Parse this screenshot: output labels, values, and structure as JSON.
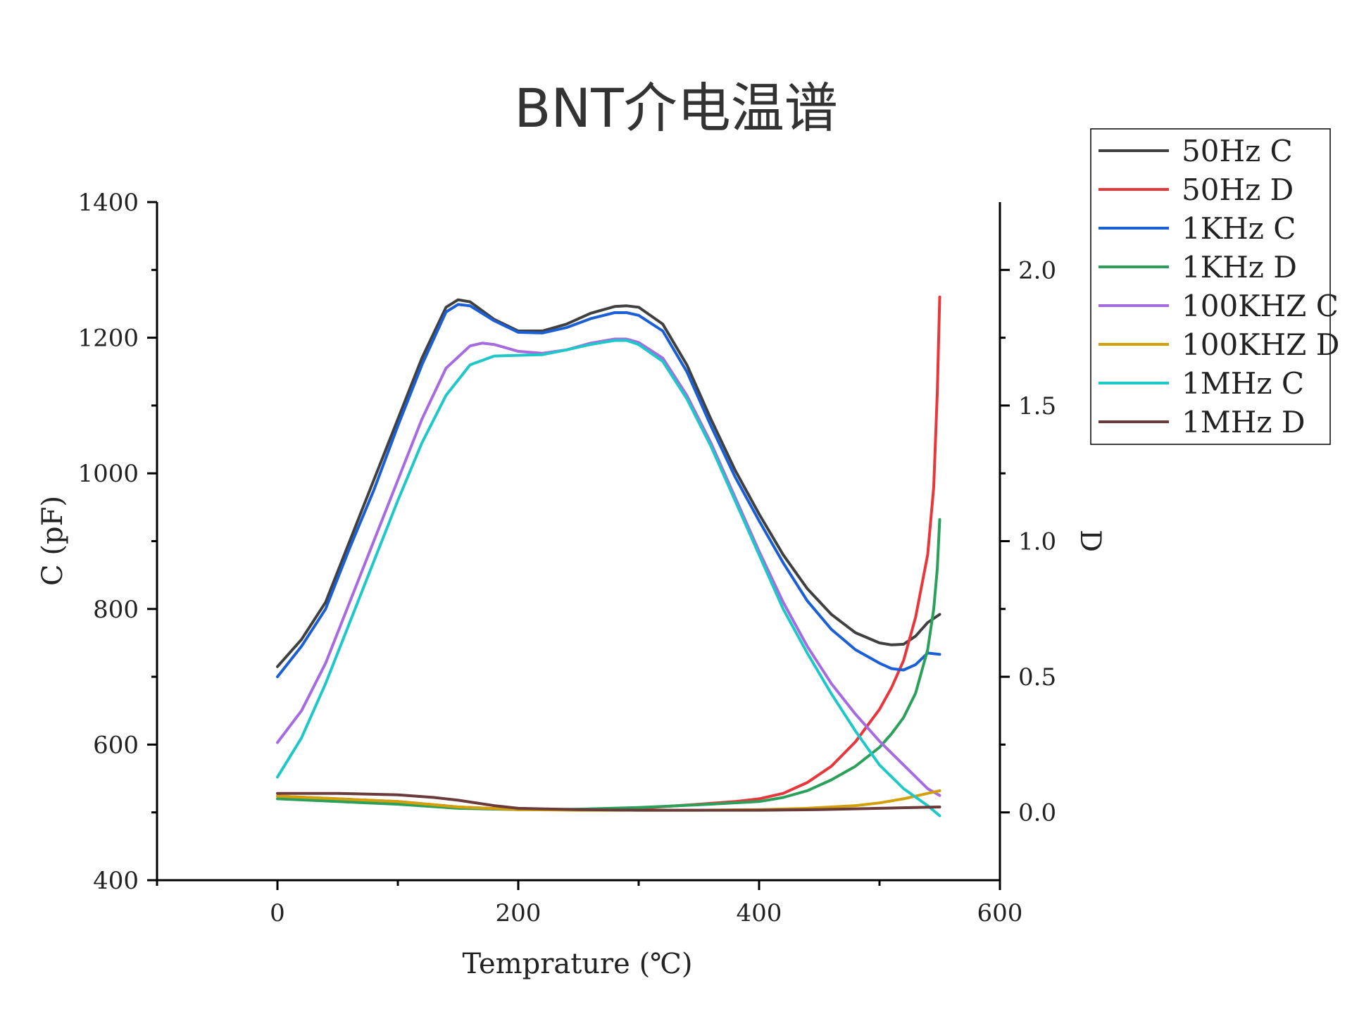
{
  "chart_data": {
    "type": "line",
    "title": "BNT介电温谱",
    "xlabel": "Temprature (℃)",
    "ylabel": "C (pF)",
    "y2label": "D",
    "xlim": [
      -100,
      600
    ],
    "ylim": [
      400,
      1400
    ],
    "y2lim": [
      -0.25,
      2.25
    ],
    "xticks": [
      0,
      200,
      400,
      600
    ],
    "yticks": [
      400,
      600,
      800,
      1000,
      1200,
      1400
    ],
    "y2ticks": [
      0.0,
      0.5,
      1.0,
      1.5,
      2.0
    ],
    "y2tick_labels": [
      "0.0",
      "0.5",
      "1.0",
      "1.5",
      "2.0"
    ],
    "legend_position": "outside-top-right",
    "series": [
      {
        "name": "50Hz C",
        "axis": "left",
        "color": "#404040",
        "x": [
          0,
          20,
          40,
          60,
          80,
          100,
          120,
          140,
          150,
          160,
          180,
          200,
          220,
          240,
          260,
          280,
          290,
          300,
          320,
          340,
          360,
          380,
          400,
          420,
          440,
          460,
          480,
          500,
          510,
          520,
          530,
          540,
          550
        ],
        "y": [
          715,
          755,
          810,
          900,
          990,
          1080,
          1170,
          1245,
          1256,
          1253,
          1227,
          1210,
          1210,
          1220,
          1236,
          1246,
          1247,
          1245,
          1220,
          1160,
          1080,
          1005,
          940,
          880,
          830,
          792,
          765,
          750,
          747,
          748,
          760,
          780,
          792
        ]
      },
      {
        "name": "50Hz D",
        "axis": "right",
        "color": "#e8373b",
        "x": [
          0,
          50,
          100,
          150,
          200,
          250,
          300,
          350,
          380,
          400,
          420,
          440,
          460,
          480,
          500,
          510,
          520,
          530,
          540,
          545,
          548,
          550
        ],
        "y": [
          0.06,
          0.05,
          0.04,
          0.02,
          0.01,
          0.01,
          0.015,
          0.03,
          0.04,
          0.05,
          0.07,
          0.11,
          0.17,
          0.26,
          0.38,
          0.46,
          0.56,
          0.72,
          0.95,
          1.2,
          1.55,
          1.9
        ]
      },
      {
        "name": "1KHz C",
        "axis": "left",
        "color": "#1a5fd6",
        "x": [
          0,
          20,
          40,
          60,
          80,
          100,
          120,
          140,
          150,
          160,
          180,
          200,
          220,
          240,
          260,
          280,
          290,
          300,
          320,
          340,
          360,
          380,
          400,
          420,
          440,
          460,
          480,
          500,
          510,
          520,
          530,
          540,
          550
        ],
        "y": [
          700,
          745,
          800,
          890,
          975,
          1070,
          1160,
          1238,
          1249,
          1247,
          1225,
          1208,
          1207,
          1215,
          1228,
          1237,
          1237,
          1233,
          1210,
          1150,
          1070,
          995,
          930,
          868,
          812,
          770,
          740,
          720,
          712,
          710,
          718,
          735,
          733
        ]
      },
      {
        "name": "1KHz D",
        "axis": "right",
        "color": "#2aa05a",
        "x": [
          0,
          50,
          100,
          150,
          200,
          250,
          300,
          350,
          400,
          420,
          440,
          460,
          480,
          500,
          510,
          520,
          530,
          540,
          545,
          548,
          550
        ],
        "y": [
          0.05,
          0.04,
          0.03,
          0.015,
          0.01,
          0.012,
          0.018,
          0.028,
          0.04,
          0.055,
          0.08,
          0.12,
          0.17,
          0.24,
          0.29,
          0.35,
          0.44,
          0.6,
          0.75,
          0.9,
          1.08
        ]
      },
      {
        "name": "100KHZ C",
        "axis": "left",
        "color": "#a66be0",
        "x": [
          0,
          20,
          40,
          60,
          80,
          100,
          120,
          140,
          160,
          170,
          180,
          200,
          220,
          240,
          260,
          280,
          290,
          300,
          320,
          340,
          360,
          380,
          400,
          420,
          440,
          460,
          480,
          500,
          520,
          540,
          550
        ],
        "y": [
          603,
          650,
          720,
          810,
          900,
          990,
          1080,
          1155,
          1188,
          1192,
          1190,
          1180,
          1177,
          1182,
          1192,
          1198,
          1198,
          1193,
          1170,
          1115,
          1045,
          965,
          885,
          810,
          745,
          690,
          645,
          605,
          570,
          535,
          525
        ]
      },
      {
        "name": "100KHZ D",
        "axis": "right",
        "color": "#d4a00a",
        "x": [
          0,
          50,
          100,
          150,
          200,
          250,
          300,
          350,
          400,
          440,
          480,
          500,
          520,
          540,
          550
        ],
        "y": [
          0.06,
          0.05,
          0.04,
          0.02,
          0.01,
          0.008,
          0.008,
          0.008,
          0.01,
          0.015,
          0.025,
          0.035,
          0.05,
          0.07,
          0.08
        ]
      },
      {
        "name": "1MHz C",
        "axis": "left",
        "color": "#1ec8c8",
        "x": [
          0,
          20,
          40,
          60,
          80,
          100,
          120,
          140,
          160,
          180,
          200,
          220,
          240,
          260,
          280,
          290,
          300,
          320,
          340,
          360,
          380,
          400,
          420,
          440,
          460,
          480,
          500,
          520,
          540,
          550
        ],
        "y": [
          552,
          610,
          690,
          780,
          870,
          960,
          1045,
          1115,
          1160,
          1173,
          1174,
          1175,
          1182,
          1190,
          1196,
          1196,
          1190,
          1165,
          1110,
          1040,
          960,
          880,
          800,
          735,
          675,
          620,
          570,
          535,
          510,
          495
        ]
      },
      {
        "name": "1MHz D",
        "axis": "right",
        "color": "#6b3a3a",
        "x": [
          0,
          50,
          100,
          130,
          150,
          180,
          200,
          250,
          300,
          350,
          400,
          450,
          500,
          550
        ],
        "y": [
          0.07,
          0.07,
          0.065,
          0.055,
          0.045,
          0.025,
          0.015,
          0.01,
          0.008,
          0.008,
          0.008,
          0.01,
          0.015,
          0.02
        ]
      }
    ]
  }
}
